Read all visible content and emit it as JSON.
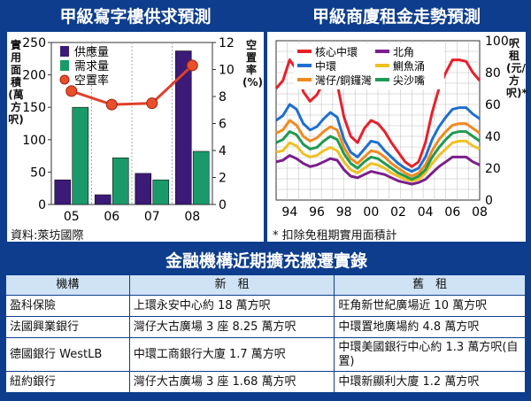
{
  "left_title": "甲級寫字樓供求預測",
  "right_title": "甲級商廈租金走勢預測",
  "left_y_label": "實用面積(萬方呎)",
  "left_y2_label": "空置率(%)",
  "right_y_label": "呎租(元/方呎)*",
  "source": "資料:萊坊國際",
  "footnote": "* 扣除免租期實用面積計",
  "table_title": "金融機構近期擴充搬遷實錄",
  "table": {
    "headers": [
      "機構",
      "新　租",
      "舊　租"
    ],
    "rows": [
      [
        "盈科保險",
        "上環永安中心約 18 萬方呎",
        "旺角新世紀廣場近 10 萬方呎"
      ],
      [
        "法國興業銀行",
        "灣仔大古廣場 3 座 8.25 萬方呎",
        "中環置地廣場約 4.8 萬方呎"
      ],
      [
        "德國銀行 WestLB",
        "中環工商銀行大廈 1.7 萬方呎",
        "中環美國銀行中心約 1.3 萬方呎(自置)"
      ],
      [
        "紐約銀行",
        "灣仔大古廣場 3 座 1.68 萬方呎",
        "中環新顯利大廈 1.2 萬方呎"
      ]
    ]
  },
  "chart_data": [
    {
      "type": "bar",
      "title": "甲級寫字樓供求預測",
      "categories": [
        "05",
        "06",
        "07",
        "08"
      ],
      "series": [
        {
          "name": "供應量",
          "values": [
            38,
            15,
            48,
            237
          ],
          "color": "#3b1a78"
        },
        {
          "name": "需求量",
          "values": [
            150,
            72,
            38,
            82
          ],
          "color": "#1a9a6a"
        },
        {
          "name": "空置率",
          "values": [
            8.4,
            7.4,
            7.5,
            10.3
          ],
          "axis": "right",
          "color": "#e0402a"
        }
      ],
      "ylabel": "實用面積(萬方呎)",
      "ylim": [
        0,
        250
      ],
      "yticks": [
        0,
        50,
        100,
        150,
        200,
        250
      ],
      "y2label": "空置率(%)",
      "y2lim": [
        0,
        12
      ],
      "y2ticks": [
        0,
        2,
        4,
        6,
        8,
        10,
        12
      ],
      "legend": "top-left"
    },
    {
      "type": "line",
      "title": "甲級商廈租金走勢預測",
      "x": [
        1993,
        1993.5,
        1994,
        1994.5,
        1995,
        1995.5,
        1996,
        1996.5,
        1997,
        1997.5,
        1998,
        1998.5,
        1999,
        1999.5,
        2000,
        2000.5,
        2001,
        2001.5,
        2002,
        2002.5,
        2003,
        2003.5,
        2004,
        2004.5,
        2005,
        2005.5,
        2006,
        2006.5,
        2007,
        2007.5,
        2008
      ],
      "xticks": [
        "94",
        "96",
        "98",
        "00",
        "02",
        "04",
        "06",
        "08"
      ],
      "series": [
        {
          "name": "核心中環",
          "color": "#e8202a",
          "values": [
            70,
            75,
            88,
            82,
            68,
            62,
            66,
            74,
            78,
            73,
            52,
            40,
            36,
            45,
            50,
            48,
            43,
            36,
            30,
            24,
            21,
            24,
            36,
            55,
            70,
            80,
            88,
            88,
            87,
            80,
            75
          ]
        },
        {
          "name": "北角",
          "color": "#7b1f8c",
          "values": [
            24,
            25,
            28,
            26,
            23,
            21,
            22,
            24,
            26,
            25,
            19,
            15,
            14,
            16,
            18,
            17,
            16,
            14,
            12,
            11,
            10,
            11,
            13,
            17,
            21,
            24,
            27,
            27,
            27,
            24,
            22
          ]
        },
        {
          "name": "中環",
          "color": "#1e6fd0",
          "values": [
            50,
            53,
            60,
            57,
            48,
            44,
            46,
            51,
            55,
            52,
            38,
            30,
            27,
            32,
            37,
            36,
            31,
            27,
            23,
            20,
            18,
            20,
            27,
            38,
            46,
            52,
            57,
            58,
            58,
            54,
            51
          ]
        },
        {
          "name": "鰂魚涌",
          "color": "#f0c020",
          "values": [
            30,
            31,
            36,
            34,
            29,
            27,
            28,
            31,
            33,
            31,
            24,
            19,
            17,
            20,
            23,
            22,
            20,
            17,
            15,
            13,
            12,
            13,
            17,
            23,
            28,
            32,
            36,
            37,
            37,
            34,
            32
          ]
        },
        {
          "name": "灣仔/銅鑼灣",
          "color": "#f08a20",
          "values": [
            42,
            44,
            50,
            47,
            40,
            37,
            39,
            43,
            46,
            44,
            33,
            26,
            23,
            27,
            31,
            30,
            27,
            23,
            20,
            17,
            15,
            17,
            22,
            31,
            38,
            43,
            47,
            48,
            48,
            45,
            42
          ]
        },
        {
          "name": "尖沙嘴",
          "color": "#1f9a50",
          "values": [
            36,
            38,
            43,
            41,
            35,
            32,
            33,
            37,
            40,
            38,
            29,
            23,
            20,
            24,
            27,
            26,
            23,
            20,
            17,
            15,
            13,
            15,
            19,
            27,
            33,
            38,
            42,
            43,
            43,
            40,
            37
          ]
        }
      ],
      "ylabel": "呎租(元/方呎)*",
      "ylim": [
        0,
        100
      ],
      "yticks": [
        0,
        20,
        40,
        60,
        80,
        100
      ],
      "legend": "top-left"
    }
  ]
}
